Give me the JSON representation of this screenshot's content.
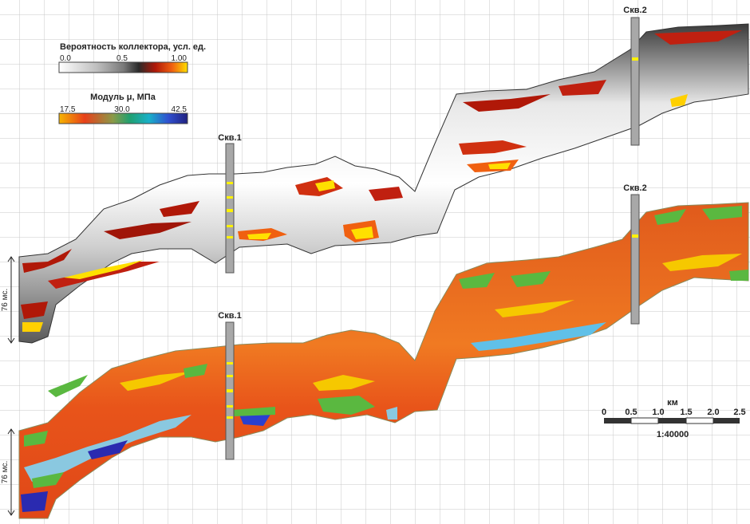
{
  "legend_probability": {
    "title": "Вероятность коллектора, усл. ед.",
    "ticks": [
      "0.0",
      "0.5",
      "1.00"
    ]
  },
  "legend_modulus": {
    "title": "Модуль μ, МПа",
    "ticks": [
      "17.5",
      "30.0",
      "42.5"
    ]
  },
  "wells": {
    "top_left": "Скв.1",
    "top_right": "Скв.2",
    "bottom_left": "Скв.1",
    "bottom_right": "Скв.2"
  },
  "scale_bar": {
    "unit": "км",
    "ticks": [
      "0",
      "0.5",
      "1.0",
      "1.5",
      "2.0",
      "2.5"
    ],
    "ratio": "1:40000"
  },
  "time_markers": {
    "upper": "76 мс.",
    "lower": "76 мс."
  },
  "colors": {
    "probability_ramp": [
      "#ffffff",
      "#bdbdbd",
      "#7a7a7a",
      "#2a2a2a",
      "#b01808",
      "#f06010",
      "#ffe000"
    ],
    "modulus_ramp": [
      "#f6b400",
      "#e8401a",
      "#8a9a48",
      "#20a070",
      "#18b0c8",
      "#3050d0",
      "#202080"
    ],
    "grid": "#c8c8c8",
    "well_column": "#a8a8a8",
    "well_marker": "#fff200"
  }
}
